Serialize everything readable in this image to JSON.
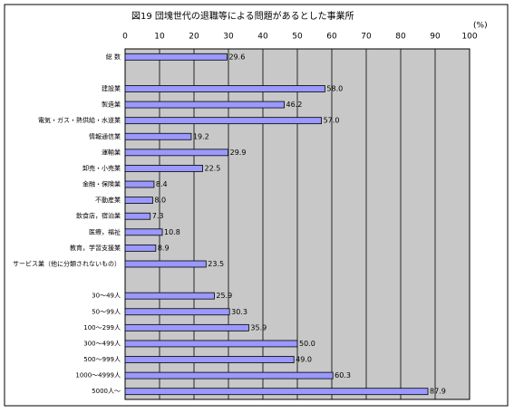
{
  "chart_data": {
    "type": "bar",
    "orientation": "horizontal",
    "title": "図19 団塊世代の退職等による問題があるとした事業所",
    "unit_label": "(%)",
    "categories": [
      "総 数",
      null,
      "建設業",
      "製造業",
      "電気・ガス・熱供給・水道業",
      "情報通信業",
      "運輸業",
      "卸売・小売業",
      "金融・保険業",
      "不動産業",
      "飲食店，宿泊業",
      "医療，福祉",
      "教育，学習支援業",
      "サービス業（他に分類されないもの）",
      null,
      "30～49人",
      "50～99人",
      "100～299人",
      "300～499人",
      "500～999人",
      "1000～4999人",
      "5000人～"
    ],
    "values": [
      29.6,
      null,
      58.0,
      46.2,
      57.0,
      19.2,
      29.9,
      22.5,
      8.4,
      8.0,
      7.3,
      10.8,
      8.9,
      23.5,
      null,
      25.9,
      30.3,
      35.9,
      50.0,
      49.0,
      60.3,
      87.9
    ],
    "value_labels": [
      "29.6",
      null,
      "58.0",
      "46.2",
      "57.0",
      "19.2",
      "29.9",
      "22.5",
      "8.4",
      "8.0",
      "7.3",
      "10.8",
      "8.9",
      "23.5",
      null,
      "25.9",
      "30.3",
      "35.9",
      "50.0",
      "49.0",
      "60.3",
      "87.9"
    ],
    "color": "#9999ff",
    "xlim": [
      0,
      100
    ],
    "xticks": [
      0,
      10,
      20,
      30,
      40,
      50,
      60,
      70,
      80,
      90,
      100
    ],
    "grid": true
  }
}
